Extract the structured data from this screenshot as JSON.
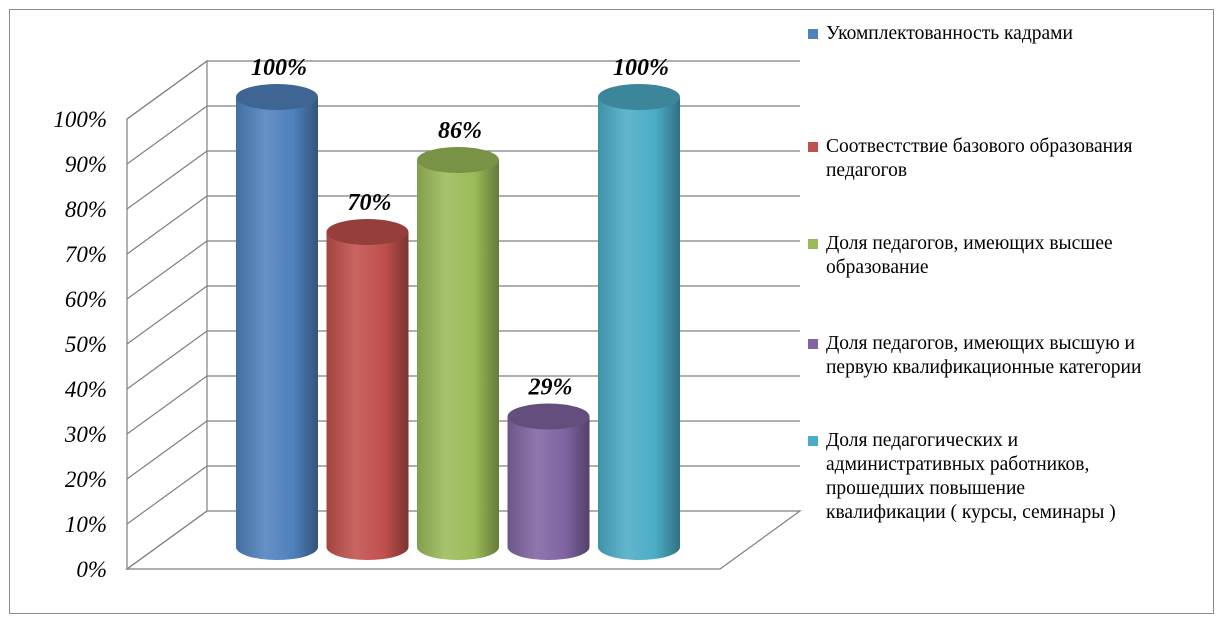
{
  "chart_data": {
    "type": "bar",
    "style": "3d-cylinder",
    "categories": [
      "Укомплектованность кадрами",
      "Соотвестствие базового образования педагогов",
      "Доля педагогов, имеющих высшее образование",
      "Доля педагогов, имеющих высшую и первую квалификационные категории",
      "Доля педагогических и административных работников, прошедших повышение квалификации ( курсы, семинары )"
    ],
    "values": [
      100,
      70,
      86,
      29,
      100
    ],
    "value_labels": [
      "100%",
      "70%",
      "86%",
      "29%",
      "100%"
    ],
    "colors": [
      "#4f81bd",
      "#c0504d",
      "#9bbb59",
      "#8064a2",
      "#4bacc6"
    ],
    "ylim": [
      0,
      100
    ],
    "yticks": [
      "0%",
      "10%",
      "20%",
      "30%",
      "40%",
      "50%",
      "60%",
      "70%",
      "80%",
      "90%",
      "100%"
    ],
    "grid": true,
    "legend_position": "right",
    "legend": [
      "Укомплектованность кадрами",
      "Соотвестствие базового образования\nпедагогов",
      "Доля педагогов, имеющих высшее\nобразование",
      "Доля педагогов, имеющих высшую и\nпервую квалификационные категории",
      "Доля педагогических и\nадминистративных работников,\nпрошедших повышение\nквалификации ( курсы, семинары )"
    ]
  }
}
